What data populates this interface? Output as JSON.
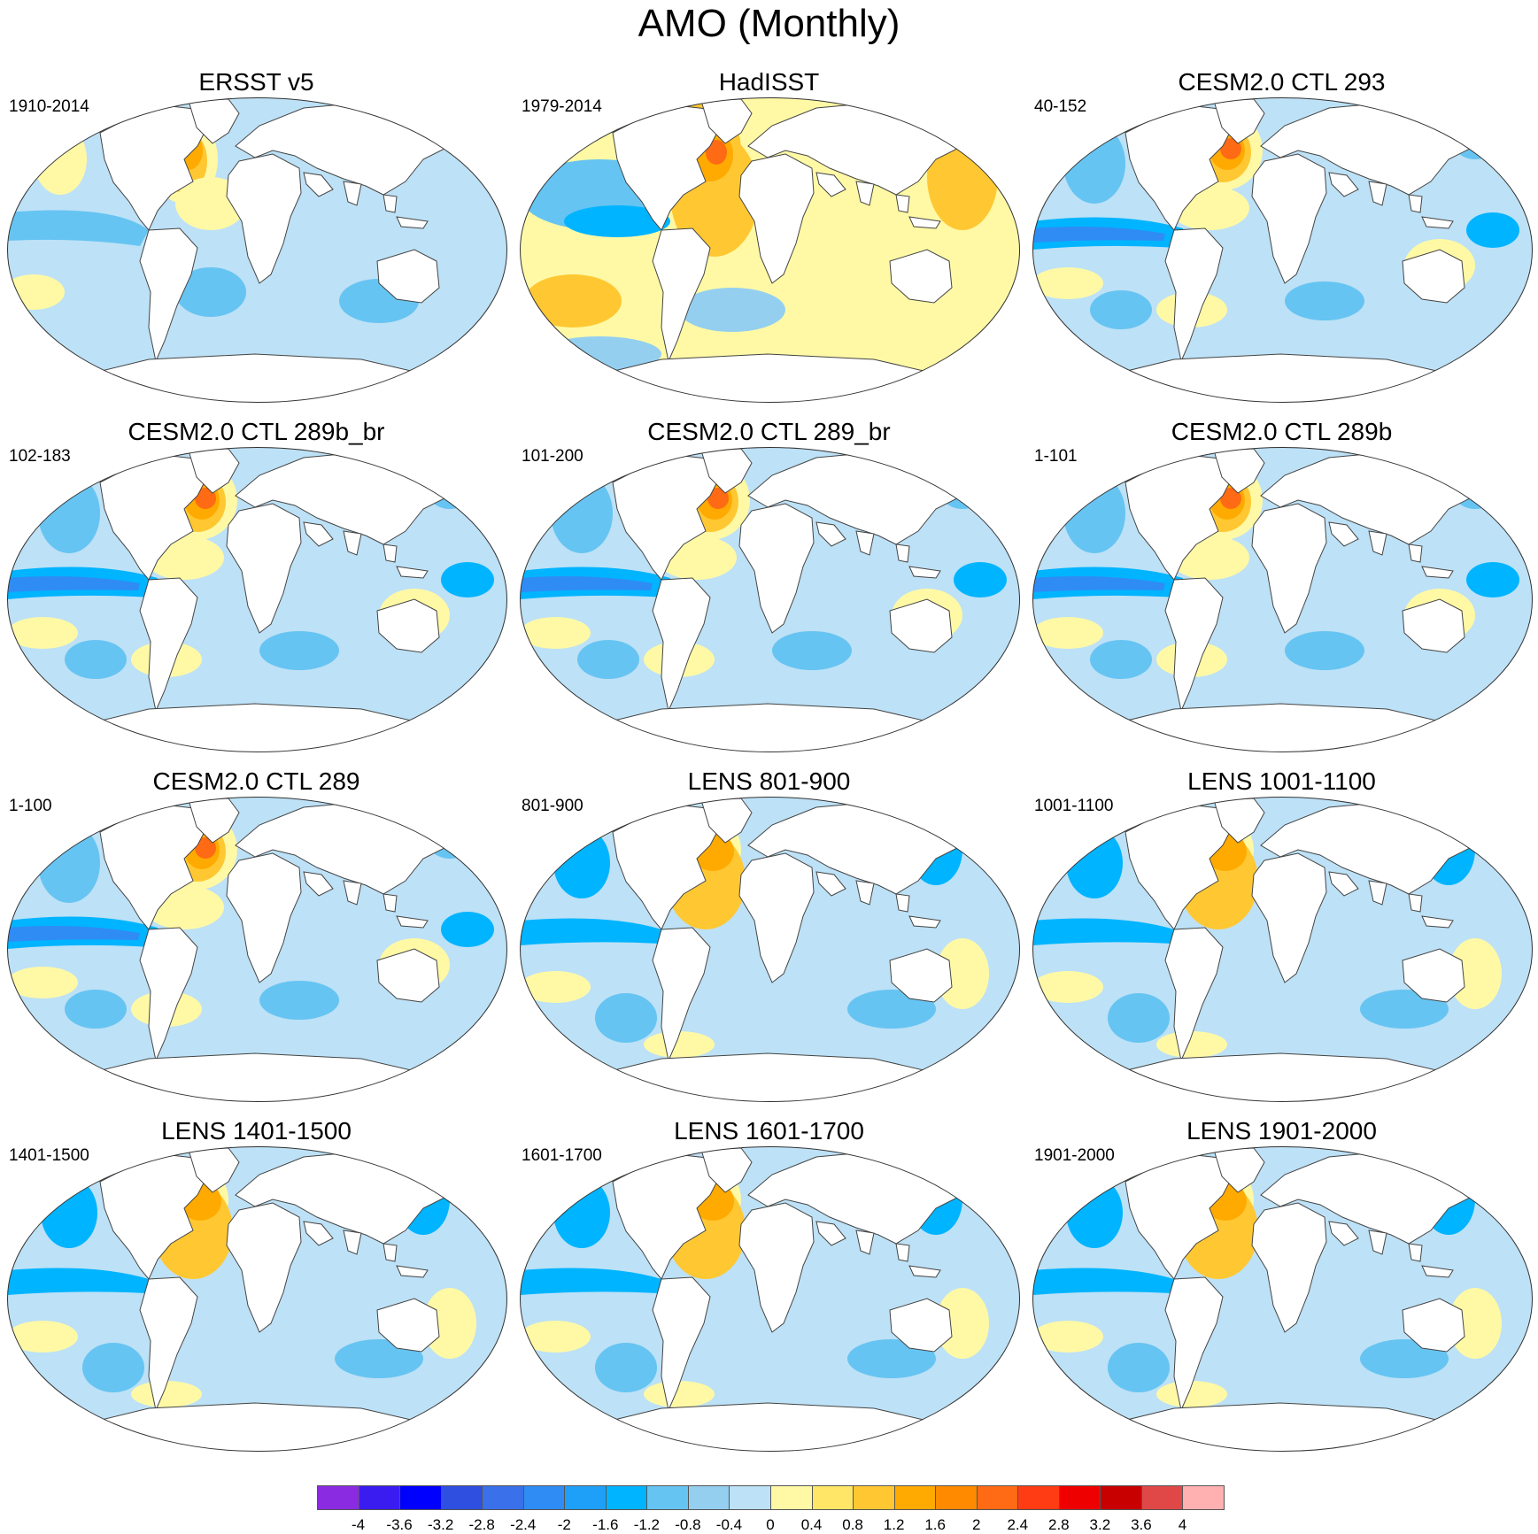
{
  "title": "AMO (Monthly)",
  "panels": [
    {
      "title": "ERSST v5",
      "years": "1910-2014",
      "variant": "ersst"
    },
    {
      "title": "HadISST",
      "years": "1979-2014",
      "variant": "hadisst"
    },
    {
      "title": "CESM2.0 CTL 293",
      "years": "40-152",
      "variant": "model"
    },
    {
      "title": "CESM2.0 CTL 289b_br",
      "years": "102-183",
      "variant": "model"
    },
    {
      "title": "CESM2.0 CTL 289_br",
      "years": "101-200",
      "variant": "model"
    },
    {
      "title": "CESM2.0 CTL 289b",
      "years": "1-101",
      "variant": "model"
    },
    {
      "title": "CESM2.0 CTL 289",
      "years": "1-100",
      "variant": "model"
    },
    {
      "title": "LENS 801-900",
      "years": "801-900",
      "variant": "lens"
    },
    {
      "title": "LENS 1001-1100",
      "years": "1001-1100",
      "variant": "lens"
    },
    {
      "title": "LENS 1401-1500",
      "years": "1401-1500",
      "variant": "lens"
    },
    {
      "title": "LENS 1601-1700",
      "years": "1601-1700",
      "variant": "lens"
    },
    {
      "title": "LENS 1901-2000",
      "years": "1901-2000",
      "variant": "lens"
    }
  ],
  "colorbar": {
    "labels": [
      "-4",
      "-3.6",
      "-3.2",
      "-2.8",
      "-2.4",
      "-2",
      "-1.6",
      "-1.2",
      "-0.8",
      "-0.4",
      "0",
      "0.4",
      "0.8",
      "1.2",
      "1.6",
      "2",
      "2.4",
      "2.8",
      "3.2",
      "3.6",
      "4"
    ],
    "colors": [
      "#8a2be2",
      "#3a1cf0",
      "#0000ff",
      "#2e4fe0",
      "#3a70ea",
      "#2f8cf5",
      "#1ea0f8",
      "#00b4ff",
      "#66c4f2",
      "#94cff0",
      "#bde1f6",
      "#fff9a6",
      "#ffe666",
      "#ffc832",
      "#ffaa00",
      "#ff8a00",
      "#ff6a14",
      "#ff3c14",
      "#ef0000",
      "#c80000",
      "#e04848",
      "#ffb0b0"
    ]
  },
  "colors": {
    "land": "#ffffff",
    "coast": "#444444",
    "ocean_base": "#bde1f6"
  }
}
